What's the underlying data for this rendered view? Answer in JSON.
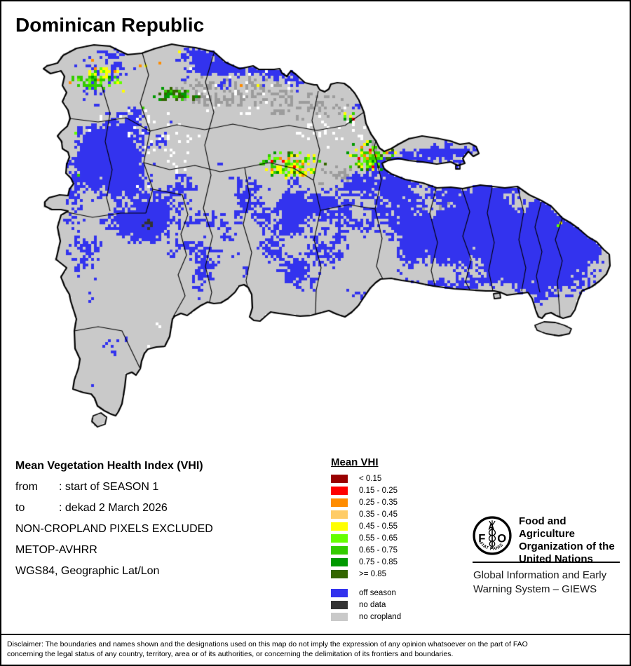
{
  "title": "Dominican Republic",
  "info": {
    "heading": "Mean Vegetation Health Index (VHI)",
    "from_label": "from",
    "from_value": ": start of SEASON 1",
    "to_label": "to",
    "to_value": ": dekad 2 March 2026",
    "line_exclusion": "NON-CROPLAND PIXELS EXCLUDED",
    "line_sensor": "METOP-AVHRR",
    "line_projection": "WGS84, Geographic Lat/Lon"
  },
  "legend": {
    "title": "Mean VHI",
    "classes": [
      {
        "label": "< 0.15",
        "color": "#990000"
      },
      {
        "label": "0.15 - 0.25",
        "color": "#FF0000"
      },
      {
        "label": "0.25 - 0.35",
        "color": "#FF8C00"
      },
      {
        "label": "0.35 - 0.45",
        "color": "#FFCC66"
      },
      {
        "label": "0.45 - 0.55",
        "color": "#FFFF00"
      },
      {
        "label": "0.55 - 0.65",
        "color": "#66FF00"
      },
      {
        "label": "0.65 - 0.75",
        "color": "#33CC00"
      },
      {
        "label": "0.75 - 0.85",
        "color": "#009900"
      },
      {
        "label": ">= 0.85",
        "color": "#336600"
      }
    ],
    "extras": [
      {
        "label": "off season",
        "color": "#3333EE"
      },
      {
        "label": "no data",
        "color": "#333333"
      },
      {
        "label": "no cropland",
        "color": "#C9C9C9"
      }
    ]
  },
  "org": {
    "logo_letters_f": "F",
    "logo_letters_a": "A",
    "logo_letters_o": "O",
    "logo_motto": "FIAT    PANIS",
    "name_line1": "Food and Agriculture",
    "name_line2": "Organization of the",
    "name_line3": "United Nations",
    "giews_line1": "Global Information and Early",
    "giews_line2": "Warning System – GIEWS"
  },
  "disclaimer_line1": "Disclaimer: The boundaries and names shown and the designations used on this map do not imply the expression of any opinion whatsoever on the part of FAO",
  "disclaimer_line2": "concerning the legal status of any country, territory, area or of its authorities, or concerning the delimitation of its frontiers and boundaries.",
  "map": {
    "sea_color": "#FFFFFF",
    "coast_color": "#000000",
    "province_color": "#000000",
    "off_season_color": "#3333EE",
    "no_data_color": "#333333",
    "no_cropland_color": "#C9C9C9",
    "gray_patch_color": "#9C9C9C",
    "vhi_colors": {
      "red_dark": "#990000",
      "red": "#FF0000",
      "orange": "#FF8C00",
      "peach": "#FFCC66",
      "yellow": "#FFFF00",
      "green_bright": "#66FF00",
      "green": "#33CC00",
      "green_deep": "#009900",
      "green_dark": "#336600"
    }
  }
}
